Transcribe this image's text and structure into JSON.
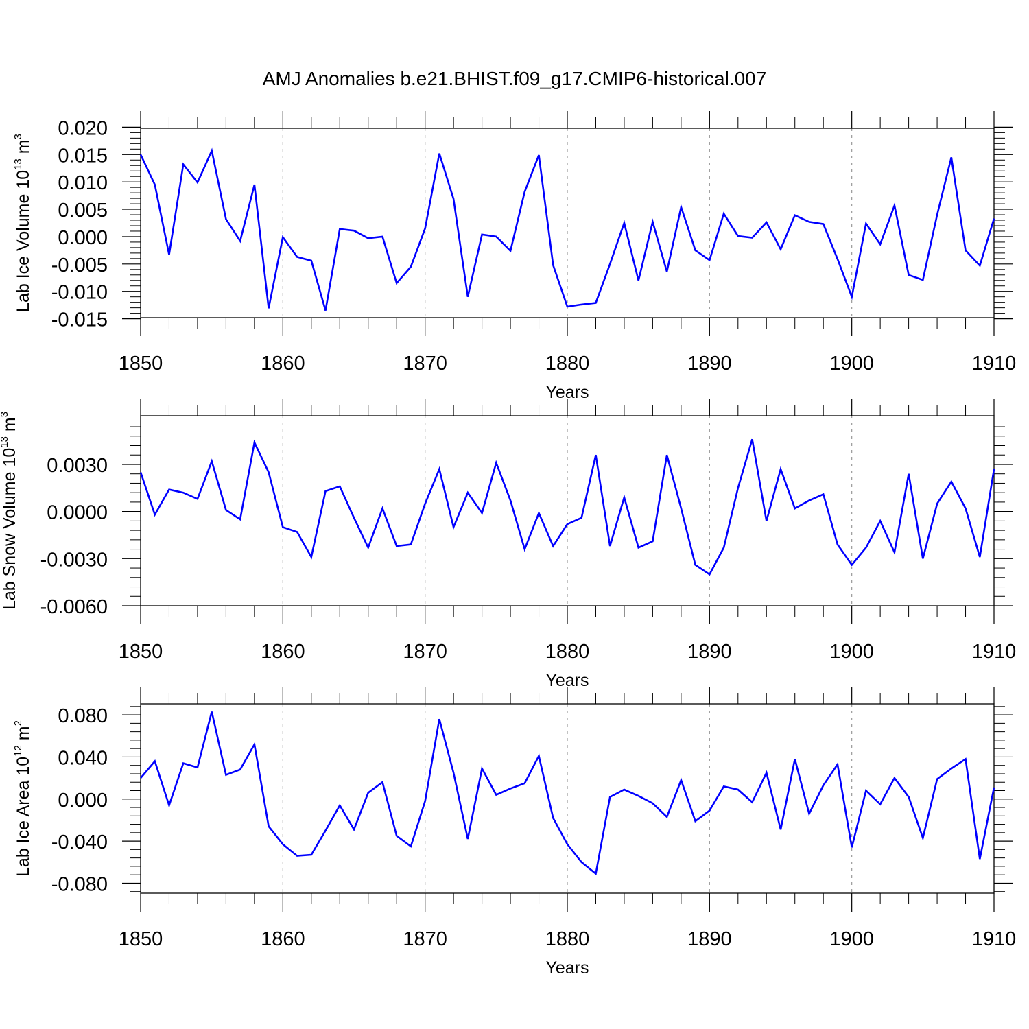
{
  "title": "AMJ Anomalies b.e21.BHIST.f09_g17.CMIP6-historical.007",
  "line_color": "#0000ff",
  "grid_color": "#999999",
  "chart_data": [
    {
      "type": "line",
      "xlabel": "Years",
      "ylabel": {
        "text": "Lab Ice Volume 10",
        "exponent": "13",
        "unit": " m",
        "unit_exponent": "3"
      },
      "xlim": [
        1850,
        1910
      ],
      "ylim": [
        -0.0148,
        0.0198
      ],
      "xticks": [
        1850,
        1860,
        1870,
        1880,
        1890,
        1900,
        1910
      ],
      "xtick_labels": [
        "1850",
        "1860",
        "1870",
        "1880",
        "1890",
        "1900",
        "1910"
      ],
      "yticks": [
        0.02,
        0.015,
        0.01,
        0.005,
        0.0,
        -0.005,
        -0.01,
        -0.015
      ],
      "ytick_labels": [
        "0.020",
        "0.015",
        "0.010",
        "0.005",
        "0.000",
        "-0.005",
        "-0.010",
        "-0.015"
      ],
      "grid": "vertical dashed at major x ticks",
      "x": [
        1850,
        1851,
        1852,
        1853,
        1854,
        1855,
        1856,
        1857,
        1858,
        1859,
        1860,
        1861,
        1862,
        1863,
        1864,
        1865,
        1866,
        1867,
        1868,
        1869,
        1870,
        1871,
        1872,
        1873,
        1874,
        1875,
        1876,
        1877,
        1878,
        1879,
        1880,
        1881,
        1882,
        1883,
        1884,
        1885,
        1886,
        1887,
        1888,
        1889,
        1890,
        1891,
        1892,
        1893,
        1894,
        1895,
        1896,
        1897,
        1898,
        1899,
        1900,
        1901,
        1902,
        1903,
        1904,
        1905,
        1906,
        1907,
        1908,
        1909,
        1910
      ],
      "y": [
        0.015,
        0.0095,
        -0.0033,
        0.0132,
        0.0099,
        0.0157,
        0.0032,
        -0.0008,
        0.0095,
        -0.0131,
        -0.0001,
        -0.0037,
        -0.0044,
        -0.0135,
        0.0014,
        0.0011,
        -0.0003,
        0.0,
        -0.0085,
        -0.0055,
        0.0015,
        0.0152,
        0.0069,
        -0.011,
        0.0004,
        0.0,
        -0.0026,
        0.0082,
        0.0149,
        -0.0052,
        -0.0128,
        -0.0124,
        -0.0121,
        -0.005,
        0.0025,
        -0.008,
        0.0027,
        -0.0064,
        0.0054,
        -0.0025,
        -0.0043,
        0.0042,
        0.0001,
        -0.0002,
        0.0026,
        -0.0023,
        0.0039,
        0.0027,
        0.0023,
        -0.0041,
        -0.011,
        0.0024,
        -0.0014,
        0.0057,
        -0.007,
        -0.0079,
        0.004,
        0.0145,
        -0.0025,
        -0.0053,
        0.0033
      ]
    },
    {
      "type": "line",
      "xlabel": "Years",
      "ylabel": {
        "text": "Lab Snow Volume 10",
        "exponent": "13",
        "unit": " m",
        "unit_exponent": "3"
      },
      "xlim": [
        1850,
        1910
      ],
      "ylim": [
        -0.006,
        0.0061
      ],
      "xticks": [
        1850,
        1860,
        1870,
        1880,
        1890,
        1900,
        1910
      ],
      "xtick_labels": [
        "1850",
        "1860",
        "1870",
        "1880",
        "1890",
        "1900",
        "1910"
      ],
      "yticks": [
        0.003,
        0.0,
        -0.003,
        -0.006
      ],
      "ytick_labels": [
        "0.0030",
        "0.0000",
        "-0.0030",
        "-0.0060"
      ],
      "grid": "vertical dashed at major x ticks",
      "x": [
        1850,
        1851,
        1852,
        1853,
        1854,
        1855,
        1856,
        1857,
        1858,
        1859,
        1860,
        1861,
        1862,
        1863,
        1864,
        1865,
        1866,
        1867,
        1868,
        1869,
        1870,
        1871,
        1872,
        1873,
        1874,
        1875,
        1876,
        1877,
        1878,
        1879,
        1880,
        1881,
        1882,
        1883,
        1884,
        1885,
        1886,
        1887,
        1888,
        1889,
        1890,
        1891,
        1892,
        1893,
        1894,
        1895,
        1896,
        1897,
        1898,
        1899,
        1900,
        1901,
        1902,
        1903,
        1904,
        1905,
        1906,
        1907,
        1908,
        1909,
        1910
      ],
      "y": [
        0.0025,
        -0.0002,
        0.0014,
        0.0012,
        0.0008,
        0.0032,
        0.0001,
        -0.0005,
        0.0044,
        0.0025,
        -0.001,
        -0.0013,
        -0.0029,
        0.0013,
        0.0016,
        -0.0004,
        -0.0023,
        0.0002,
        -0.0022,
        -0.0021,
        0.0005,
        0.0027,
        -0.001,
        0.0012,
        -0.0001,
        0.0031,
        0.0007,
        -0.0024,
        -0.0001,
        -0.0022,
        -0.0008,
        -0.0004,
        0.0036,
        -0.0022,
        0.0009,
        -0.0023,
        -0.0019,
        0.0036,
        0.0002,
        -0.0034,
        -0.004,
        -0.0023,
        0.0015,
        0.0046,
        -0.0006,
        0.0027,
        0.0002,
        0.0007,
        0.0011,
        -0.0021,
        -0.0034,
        -0.0023,
        -0.0006,
        -0.0026,
        0.0024,
        -0.003,
        0.0005,
        0.0019,
        0.0002,
        -0.0029,
        0.0027
      ]
    },
    {
      "type": "line",
      "xlabel": "Years",
      "ylabel": {
        "text": "Lab Ice Area 10",
        "exponent": "12",
        "unit": " m",
        "unit_exponent": "2"
      },
      "xlim": [
        1850,
        1910
      ],
      "ylim": [
        -0.0895,
        0.0905
      ],
      "xticks": [
        1850,
        1860,
        1870,
        1880,
        1890,
        1900,
        1910
      ],
      "xtick_labels": [
        "1850",
        "1860",
        "1870",
        "1880",
        "1890",
        "1900",
        "1910"
      ],
      "yticks": [
        0.08,
        0.04,
        0.0,
        -0.04,
        -0.08
      ],
      "ytick_labels": [
        "0.080",
        "0.040",
        "0.000",
        "-0.040",
        "-0.080"
      ],
      "grid": "vertical dashed at major x ticks",
      "x": [
        1850,
        1851,
        1852,
        1853,
        1854,
        1855,
        1856,
        1857,
        1858,
        1859,
        1860,
        1861,
        1862,
        1863,
        1864,
        1865,
        1866,
        1867,
        1868,
        1869,
        1870,
        1871,
        1872,
        1873,
        1874,
        1875,
        1876,
        1877,
        1878,
        1879,
        1880,
        1881,
        1882,
        1883,
        1884,
        1885,
        1886,
        1887,
        1888,
        1889,
        1890,
        1891,
        1892,
        1893,
        1894,
        1895,
        1896,
        1897,
        1898,
        1899,
        1900,
        1901,
        1902,
        1903,
        1904,
        1905,
        1906,
        1907,
        1908,
        1909,
        1910
      ],
      "y": [
        0.02,
        0.036,
        -0.006,
        0.034,
        0.03,
        0.083,
        0.023,
        0.028,
        0.052,
        -0.026,
        -0.043,
        -0.054,
        -0.053,
        -0.03,
        -0.006,
        -0.029,
        0.006,
        0.016,
        -0.035,
        -0.045,
        -0.002,
        0.076,
        0.025,
        -0.038,
        0.029,
        0.004,
        0.01,
        0.015,
        0.041,
        -0.018,
        -0.043,
        -0.06,
        -0.071,
        0.002,
        0.009,
        0.003,
        -0.004,
        -0.017,
        0.018,
        -0.021,
        -0.011,
        0.012,
        0.009,
        -0.003,
        0.025,
        -0.029,
        0.038,
        -0.014,
        0.013,
        0.033,
        -0.046,
        0.008,
        -0.005,
        0.02,
        0.002,
        -0.037,
        0.019,
        0.029,
        0.038,
        -0.057,
        0.011
      ]
    }
  ]
}
